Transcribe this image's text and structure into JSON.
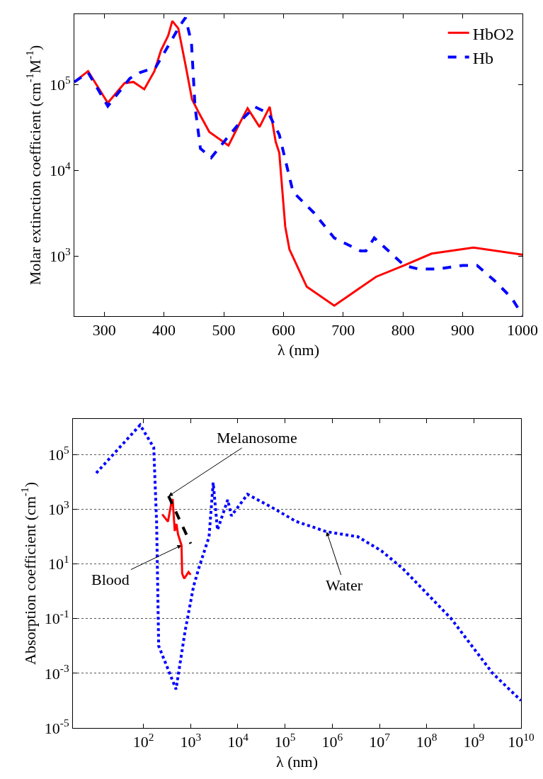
{
  "chart_data": [
    {
      "type": "line",
      "xlabel": "λ (nm)",
      "ylabel": "Molar extinction coefficient (cm$^{-1}$M$^{-1}$)",
      "log": "y",
      "legend": "top right",
      "grid": false,
      "xlim": [
        250,
        1000
      ],
      "xticks": [
        300,
        400,
        500,
        600,
        700,
        800,
        900,
        1000
      ],
      "ylim": [
        200,
        660000
      ],
      "yticks": [
        {
          "value": 1000,
          "label": "10$^{3}$"
        },
        {
          "value": 10000,
          "label": "10$^{4}$"
        },
        {
          "value": 100000,
          "label": "10$^{5}$"
        }
      ],
      "series": [
        {
          "name": "HbO2",
          "color": "#ff0000",
          "line_style": "solid",
          "x": [
            250,
            273,
            306,
            334,
            349,
            367,
            384,
            395,
            407,
            414,
            424,
            436,
            447,
            459,
            476,
            508,
            529,
            540,
            560,
            577,
            587,
            593,
            603,
            610,
            639,
            685,
            755,
            802,
            848,
            918,
            1000
          ],
          "values": [
            107000,
            143000,
            61000,
            104000,
            107000,
            88000,
            143000,
            250000,
            370000,
            550000,
            450000,
            170000,
            67000,
            46000,
            28000,
            19500,
            38000,
            53000,
            32000,
            55000,
            21500,
            16000,
            2200,
            1200,
            440,
            265,
            575,
            780,
            1070,
            1260,
            1040
          ]
        },
        {
          "name": "Hb",
          "color": "#0000ff",
          "line_style": "dashed",
          "x": [
            250,
            273,
            306,
            343,
            360,
            386,
            407,
            427,
            436,
            446,
            452,
            461,
            479,
            505,
            535,
            552,
            575,
            593,
            616,
            651,
            685,
            729,
            738,
            752,
            773,
            802,
            825,
            860,
            900,
            924,
            953,
            982,
            1000
          ],
          "values": [
            107000,
            138000,
            56000,
            118000,
            138000,
            158000,
            280000,
            490000,
            600000,
            310000,
            55000,
            18000,
            14000,
            23500,
            42000,
            55000,
            46000,
            26000,
            5600,
            3200,
            1630,
            1150,
            1150,
            1630,
            1200,
            780,
            710,
            710,
            780,
            780,
            520,
            325,
            205
          ]
        }
      ]
    },
    {
      "type": "line",
      "xlabel": "λ (nm)",
      "ylabel": "Absorption coefficient (cm$^{-1}$)",
      "log": "xy",
      "legend": false,
      "grid": "y",
      "xlim": [
        3.2,
        10000000000
      ],
      "xticks": [
        {
          "value": 100,
          "label": "10$^{2}$"
        },
        {
          "value": 1000,
          "label": "10$^{3}$"
        },
        {
          "value": 10000,
          "label": "10$^{4}$"
        },
        {
          "value": 100000,
          "label": "10$^{5}$"
        },
        {
          "value": 1000000,
          "label": "10$^{6}$"
        },
        {
          "value": 10000000,
          "label": "10$^{7}$"
        },
        {
          "value": 100000000,
          "label": "10$^{8}$"
        },
        {
          "value": 1000000000,
          "label": "10$^{9}$"
        },
        {
          "value": 10000000000,
          "label": "10$^{10}$"
        }
      ],
      "ylim": [
        1e-05,
        2000000
      ],
      "yticks": [
        {
          "value": 1e-05,
          "label": "10$^{-5}$"
        },
        {
          "value": 0.001,
          "label": "10$^{-3}$"
        },
        {
          "value": 0.1,
          "label": "10$^{-1}$"
        },
        {
          "value": 10,
          "label": "10$^{1}$"
        },
        {
          "value": 1000,
          "label": "10$^{3}$"
        },
        {
          "value": 100000,
          "label": "10$^{5}$"
        }
      ],
      "series": [
        {
          "color": "#0000ff",
          "line_style": "dotted",
          "x": [
            10,
            85,
            165,
            190,
            210,
            490,
            760,
            1150,
            1480,
            2450,
            3000,
            3700,
            6100,
            7300,
            16000,
            51000,
            170000,
            760000,
            3500000,
            11000000,
            31000000,
            330000000,
            2500000000,
            10000000000
          ],
          "values": [
            21000,
            1200000,
            180000,
            316,
            0.01,
            0.00026,
            0.034,
            1.5,
            6.8,
            98,
            9300,
            175,
            2200,
            570,
            3500,
            1200,
            360,
            150,
            98,
            30,
            6.8,
            0.1,
            0.001,
            0.0001
          ]
        },
        {
          "color": "#ff0000",
          "line_style": "solid",
          "x": [
            250,
            330,
            390,
            415,
            460,
            500,
            540,
            640,
            660,
            730,
            900,
            1000
          ],
          "values": [
            650,
            350,
            1700,
            2350,
            160,
            290,
            120,
            48,
            4.4,
            2.9,
            5,
            4
          ]
        },
        {
          "color": "#000000",
          "line_style": "dashed",
          "x": [
            340,
            1000
          ],
          "values": [
            3000,
            55
          ]
        }
      ],
      "annotations": [
        {
          "text": "Melanosome",
          "x": 340,
          "y": 3000
        },
        {
          "text": "Blood",
          "x": 640,
          "y": 48
        },
        {
          "text": "Water",
          "x": 760000,
          "y": 150
        }
      ]
    }
  ]
}
